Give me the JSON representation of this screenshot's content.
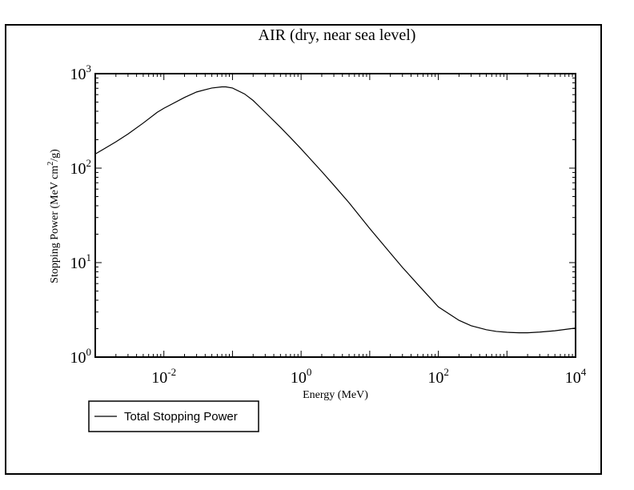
{
  "chart_data": {
    "type": "line",
    "title": "AIR (dry, near sea level)",
    "xlabel": "Energy (MeV)",
    "ylabel_parts": {
      "pre": "Stopping Power (MeV cm",
      "sup": "2",
      "post": "/g)"
    },
    "x_scale": "log",
    "y_scale": "log",
    "xlim": [
      0.001,
      10000
    ],
    "ylim": [
      1,
      1000
    ],
    "x_ticks": [
      {
        "base": "10",
        "exp": "-2",
        "value": 0.01
      },
      {
        "base": "10",
        "exp": "0",
        "value": 1
      },
      {
        "base": "10",
        "exp": "2",
        "value": 100
      },
      {
        "base": "10",
        "exp": "4",
        "value": 10000
      }
    ],
    "y_ticks": [
      {
        "base": "10",
        "exp": "0",
        "value": 1
      },
      {
        "base": "10",
        "exp": "1",
        "value": 10
      },
      {
        "base": "10",
        "exp": "2",
        "value": 100
      },
      {
        "base": "10",
        "exp": "3",
        "value": 1000
      }
    ],
    "grid": false,
    "legend_position": "bottom-left, below plot",
    "line_color": "#000000",
    "series": [
      {
        "name": "Total Stopping Power",
        "x": [
          0.001,
          0.002,
          0.003,
          0.005,
          0.008,
          0.01,
          0.02,
          0.03,
          0.05,
          0.07,
          0.08,
          0.1,
          0.15,
          0.2,
          0.3,
          0.5,
          0.7,
          1,
          2,
          3,
          5,
          10,
          20,
          30,
          50,
          100,
          200,
          300,
          500,
          700,
          1000,
          1500,
          2000,
          3000,
          5000,
          10000
        ],
        "y": [
          141,
          190,
          230,
          300,
          390,
          430,
          560,
          640,
          705,
          725,
          725,
          705,
          610,
          520,
          390,
          270,
          210,
          160,
          92,
          66,
          43,
          23,
          12.6,
          8.9,
          5.9,
          3.4,
          2.45,
          2.15,
          1.95,
          1.87,
          1.83,
          1.81,
          1.81,
          1.84,
          1.9,
          2.03
        ]
      }
    ]
  }
}
